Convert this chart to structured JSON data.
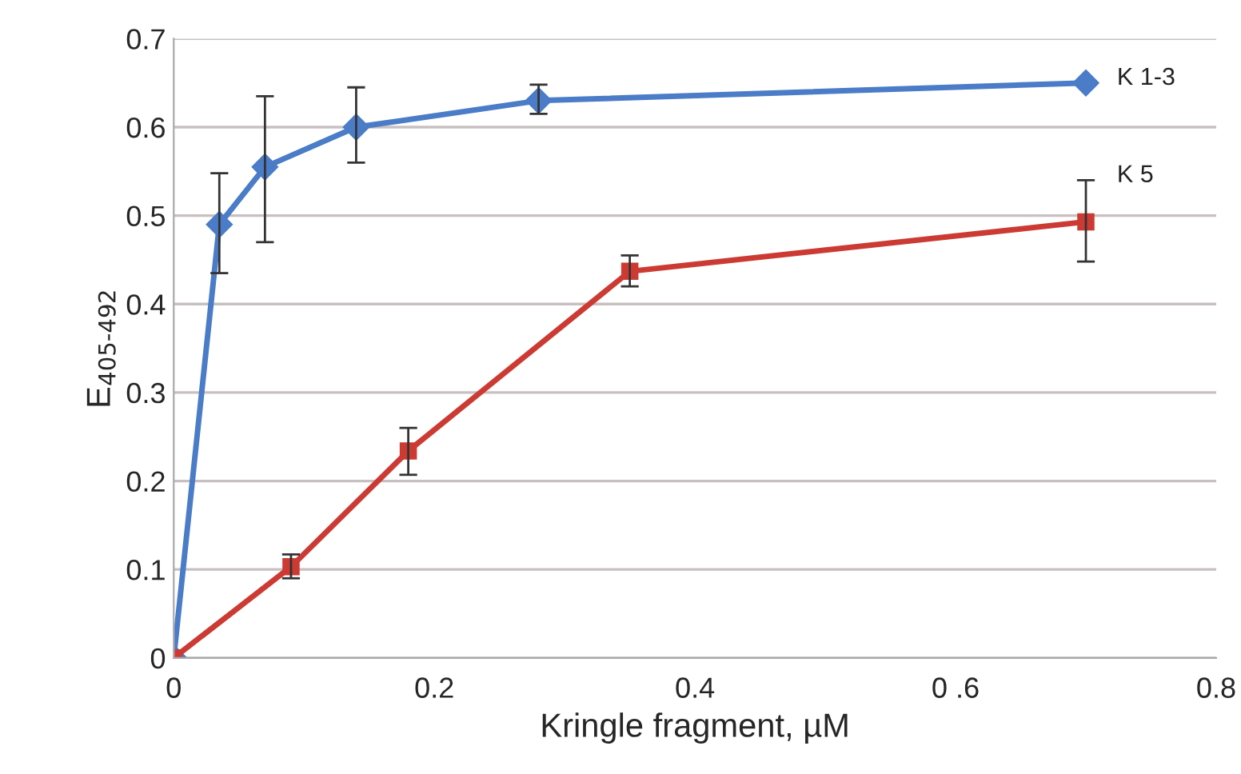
{
  "chart_data": {
    "type": "line",
    "xlabel": "Kringle fragment, µM",
    "ylabel": "E$_{405-492}$",
    "xlim": [
      0,
      0.8
    ],
    "xticks": [
      0,
      0.2,
      0.4,
      {
        "value": 0.6,
        "label": "0 .6"
      },
      0.8
    ],
    "ylim": [
      0,
      0.7
    ],
    "yticks": [
      0,
      0.1,
      0.2,
      0.3,
      0.4,
      0.5,
      0.6,
      0.7
    ],
    "grid": "y",
    "line_style": "solid",
    "series": [
      {
        "name": "K 1-3",
        "color": "#4a7cc7",
        "marker": "diamond",
        "x": [
          0,
          0.035,
          0.07,
          0.14,
          0.28,
          0.7
        ],
        "values": [
          0,
          0.49,
          0.555,
          0.6,
          0.63,
          0.65
        ],
        "errors": [
          null,
          [
            0.435,
            0.548
          ],
          [
            0.47,
            0.635
          ],
          [
            0.56,
            0.645
          ],
          [
            0.615,
            0.648
          ],
          null
        ]
      },
      {
        "name": "K 5",
        "color": "#cc3b33",
        "marker": "square",
        "x": [
          0,
          0.09,
          0.18,
          0.35,
          0.7
        ],
        "values": [
          0,
          0.103,
          0.234,
          0.437,
          0.493
        ],
        "errors": [
          null,
          [
            0.09,
            0.117
          ],
          [
            0.207,
            0.26
          ],
          [
            0.42,
            0.455
          ],
          [
            0.448,
            0.54
          ]
        ]
      }
    ]
  }
}
